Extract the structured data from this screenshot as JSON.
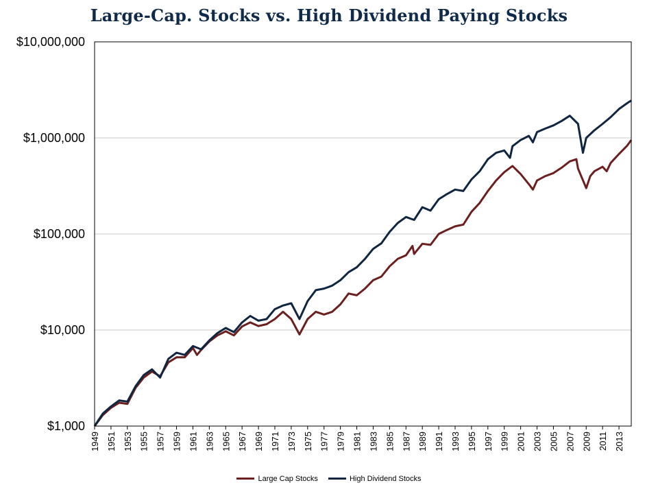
{
  "chart_data": {
    "type": "line",
    "title": "Large-Cap. Stocks vs. High Dividend Paying Stocks",
    "xlabel": "",
    "ylabel": "",
    "y_scale": "log",
    "ylim": [
      1000,
      10000000
    ],
    "xlim": [
      1949,
      2014.5
    ],
    "grid": "horizontal",
    "legend_position": "bottom",
    "y_ticks": [
      {
        "value": 1000,
        "label": "$1,000"
      },
      {
        "value": 10000,
        "label": "$10,000"
      },
      {
        "value": 100000,
        "label": "$100,000"
      },
      {
        "value": 1000000,
        "label": "$1,000,000"
      },
      {
        "value": 10000000,
        "label": "$10,000,000"
      }
    ],
    "x_ticks": [
      "1949",
      "1951",
      "1953",
      "1955",
      "1957",
      "1959",
      "1961",
      "1963",
      "1965",
      "1967",
      "1969",
      "1971",
      "1973",
      "1975",
      "1977",
      "1979",
      "1981",
      "1983",
      "1985",
      "1987",
      "1989",
      "1991",
      "1993",
      "1995",
      "1997",
      "1999",
      "2001",
      "2003",
      "2005",
      "2007",
      "2009",
      "2011",
      "2013"
    ],
    "series": [
      {
        "name": "Large Cap Stocks",
        "color": "#6b1f1f",
        "points": [
          [
            1949,
            1000
          ],
          [
            1950,
            1300
          ],
          [
            1951,
            1550
          ],
          [
            1952,
            1750
          ],
          [
            1953,
            1700
          ],
          [
            1954,
            2500
          ],
          [
            1955,
            3200
          ],
          [
            1956,
            3700
          ],
          [
            1957,
            3300
          ],
          [
            1958,
            4600
          ],
          [
            1959,
            5200
          ],
          [
            1960,
            5200
          ],
          [
            1961,
            6500
          ],
          [
            1961.5,
            5500
          ],
          [
            1962,
            6200
          ],
          [
            1963,
            7600
          ],
          [
            1964,
            8800
          ],
          [
            1965,
            9700
          ],
          [
            1966,
            8800
          ],
          [
            1967,
            10900
          ],
          [
            1968,
            12000
          ],
          [
            1969,
            11000
          ],
          [
            1970,
            11500
          ],
          [
            1971,
            13000
          ],
          [
            1972,
            15500
          ],
          [
            1973,
            13000
          ],
          [
            1974,
            9000
          ],
          [
            1975,
            13000
          ],
          [
            1976,
            15500
          ],
          [
            1977,
            14500
          ],
          [
            1978,
            15500
          ],
          [
            1979,
            18500
          ],
          [
            1980,
            24000
          ],
          [
            1981,
            23000
          ],
          [
            1982,
            27000
          ],
          [
            1983,
            33000
          ],
          [
            1984,
            36000
          ],
          [
            1985,
            46000
          ],
          [
            1986,
            55000
          ],
          [
            1987,
            60000
          ],
          [
            1987.8,
            75000
          ],
          [
            1988,
            62000
          ],
          [
            1989,
            79000
          ],
          [
            1990,
            77000
          ],
          [
            1991,
            100000
          ],
          [
            1992,
            110000
          ],
          [
            1993,
            120000
          ],
          [
            1994,
            125000
          ],
          [
            1995,
            170000
          ],
          [
            1996,
            210000
          ],
          [
            1997,
            280000
          ],
          [
            1998,
            360000
          ],
          [
            1999,
            440000
          ],
          [
            2000,
            510000
          ],
          [
            2001,
            420000
          ],
          [
            2002,
            330000
          ],
          [
            2002.5,
            290000
          ],
          [
            2003,
            360000
          ],
          [
            2004,
            400000
          ],
          [
            2005,
            430000
          ],
          [
            2006,
            490000
          ],
          [
            2007,
            570000
          ],
          [
            2007.8,
            600000
          ],
          [
            2008,
            480000
          ],
          [
            2009,
            300000
          ],
          [
            2009.5,
            400000
          ],
          [
            2010,
            450000
          ],
          [
            2011,
            500000
          ],
          [
            2011.5,
            450000
          ],
          [
            2012,
            550000
          ],
          [
            2013,
            680000
          ],
          [
            2014,
            830000
          ],
          [
            2014.5,
            950000
          ]
        ]
      },
      {
        "name": "High Dividend Stocks",
        "color": "#0f2540",
        "points": [
          [
            1949,
            1000
          ],
          [
            1950,
            1350
          ],
          [
            1951,
            1600
          ],
          [
            1952,
            1850
          ],
          [
            1953,
            1800
          ],
          [
            1954,
            2600
          ],
          [
            1955,
            3400
          ],
          [
            1956,
            3900
          ],
          [
            1957,
            3200
          ],
          [
            1958,
            5000
          ],
          [
            1959,
            5800
          ],
          [
            1960,
            5500
          ],
          [
            1961,
            6800
          ],
          [
            1962,
            6300
          ],
          [
            1963,
            7800
          ],
          [
            1964,
            9300
          ],
          [
            1965,
            10500
          ],
          [
            1966,
            9500
          ],
          [
            1967,
            12000
          ],
          [
            1968,
            14000
          ],
          [
            1969,
            12500
          ],
          [
            1970,
            13000
          ],
          [
            1971,
            16500
          ],
          [
            1972,
            18000
          ],
          [
            1973,
            19000
          ],
          [
            1974,
            13000
          ],
          [
            1975,
            20000
          ],
          [
            1976,
            26000
          ],
          [
            1977,
            27000
          ],
          [
            1978,
            29000
          ],
          [
            1979,
            33000
          ],
          [
            1980,
            40000
          ],
          [
            1981,
            45000
          ],
          [
            1982,
            55000
          ],
          [
            1983,
            70000
          ],
          [
            1984,
            80000
          ],
          [
            1985,
            105000
          ],
          [
            1986,
            130000
          ],
          [
            1987,
            150000
          ],
          [
            1988,
            140000
          ],
          [
            1989,
            190000
          ],
          [
            1990,
            175000
          ],
          [
            1991,
            230000
          ],
          [
            1992,
            260000
          ],
          [
            1993,
            290000
          ],
          [
            1994,
            280000
          ],
          [
            1995,
            370000
          ],
          [
            1996,
            450000
          ],
          [
            1997,
            600000
          ],
          [
            1998,
            700000
          ],
          [
            1999,
            740000
          ],
          [
            1999.7,
            620000
          ],
          [
            2000,
            820000
          ],
          [
            2001,
            950000
          ],
          [
            2002,
            1050000
          ],
          [
            2002.5,
            900000
          ],
          [
            2003,
            1150000
          ],
          [
            2004,
            1250000
          ],
          [
            2005,
            1350000
          ],
          [
            2006,
            1500000
          ],
          [
            2007,
            1700000
          ],
          [
            2008,
            1400000
          ],
          [
            2008.6,
            700000
          ],
          [
            2009,
            1000000
          ],
          [
            2010,
            1200000
          ],
          [
            2011,
            1400000
          ],
          [
            2012,
            1650000
          ],
          [
            2013,
            2000000
          ],
          [
            2014,
            2300000
          ],
          [
            2014.5,
            2450000
          ]
        ]
      }
    ]
  }
}
